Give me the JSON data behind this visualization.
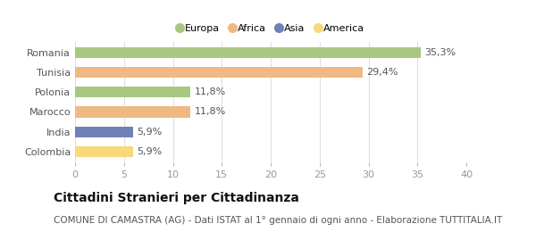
{
  "categories": [
    "Romania",
    "Tunisia",
    "Polonia",
    "Marocco",
    "India",
    "Colombia"
  ],
  "values": [
    35.3,
    29.4,
    11.8,
    11.8,
    5.9,
    5.9
  ],
  "labels": [
    "35,3%",
    "29,4%",
    "11,8%",
    "11,8%",
    "5,9%",
    "5,9%"
  ],
  "colors": [
    "#a8c882",
    "#f0b882",
    "#a8c882",
    "#f0b882",
    "#7080b8",
    "#f8d87a"
  ],
  "legend_labels": [
    "Europa",
    "Africa",
    "Asia",
    "America"
  ],
  "legend_colors": [
    "#a8c882",
    "#f0b882",
    "#7080b8",
    "#f8d87a"
  ],
  "xlim": [
    0,
    40
  ],
  "xticks": [
    0,
    5,
    10,
    15,
    20,
    25,
    30,
    35,
    40
  ],
  "title": "Cittadini Stranieri per Cittadinanza",
  "subtitle": "COMUNE DI CAMASTRA (AG) - Dati ISTAT al 1° gennaio di ogni anno - Elaborazione TUTTITALIA.IT",
  "background_color": "#ffffff",
  "bar_edge_color": "none",
  "title_fontsize": 10,
  "subtitle_fontsize": 7.5,
  "label_fontsize": 8,
  "tick_fontsize": 8,
  "bar_height": 0.55
}
